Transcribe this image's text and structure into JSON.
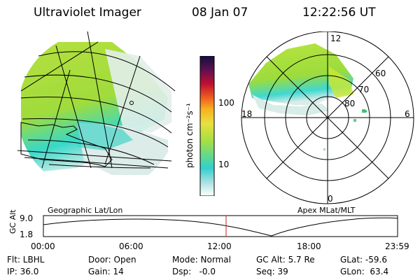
{
  "header": {
    "title": "Ultraviolet Imager",
    "date": "08 Jan 07",
    "time": "12:22:56 UT"
  },
  "colorbar": {
    "unit_label": "photon cm⁻²s⁻¹",
    "tick_labels": [
      "100",
      "10"
    ]
  },
  "polar_plot": {
    "mlt_labels": {
      "top": "12",
      "left": "18",
      "right": "6",
      "bottom": "0"
    },
    "lat_labels": [
      "60",
      "70",
      "80"
    ]
  },
  "map_labels": {
    "left": "Geographic Lat/Lon",
    "right": "Apex MLat/MLT"
  },
  "altitude_plot": {
    "axis_title": "GC Alt",
    "y_labels": [
      "9.0",
      "1.8"
    ],
    "x_labels": [
      "00:00",
      "06:00",
      "12:00",
      "18:00",
      "23:59"
    ]
  },
  "info": {
    "filter": "Flt: LBHL",
    "ip": "IP: 36.0",
    "door": "Door: Open",
    "gain": "Gain: 14",
    "mode": "Mode: Normal",
    "dsp": "Dsp:   -0.0",
    "gc_alt": "GC Alt: 5.7 Re",
    "seq": "Seq: 39",
    "glat": "GLat: -59.6",
    "glon": "GLon:  63.4"
  },
  "colors": {
    "aurora_green": "#a8e040",
    "aurora_yellow_green": "#cce830",
    "aurora_cyan": "#40d8d0",
    "haze": "#d8ece8",
    "current_time_marker": "#cc2020"
  }
}
